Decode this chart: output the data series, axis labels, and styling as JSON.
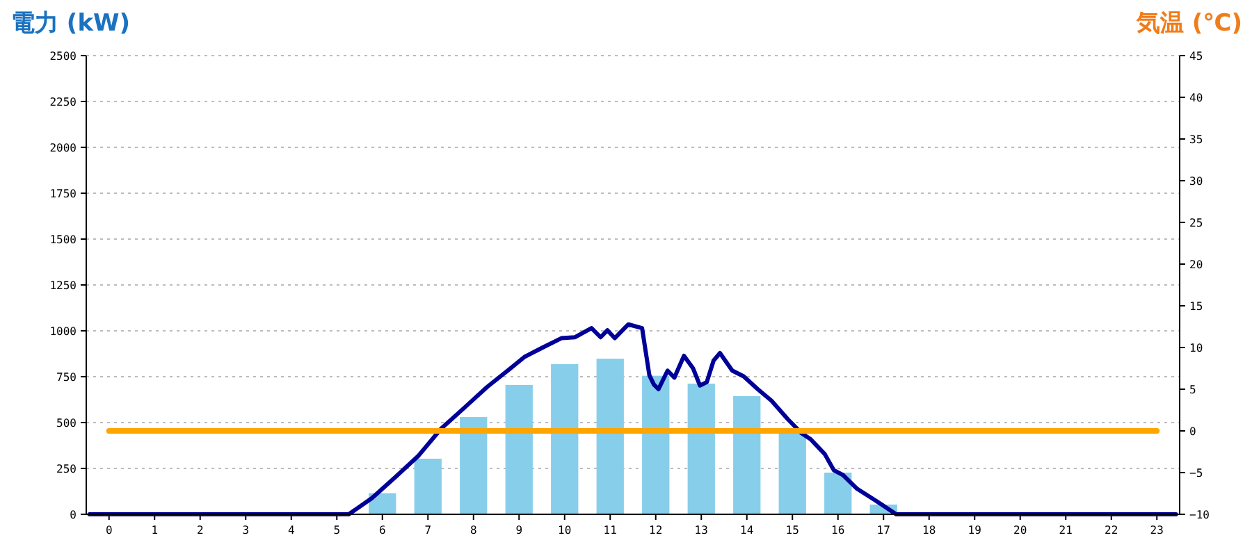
{
  "chart_data": {
    "type": "bar",
    "ylabel": "電力 (kW)",
    "y2label": "気温 (℃)",
    "x": [
      0,
      1,
      2,
      3,
      4,
      5,
      6,
      7,
      8,
      9,
      10,
      11,
      12,
      13,
      14,
      15,
      16,
      17,
      18,
      19,
      20,
      21,
      22,
      23
    ],
    "xlim": [
      -0.5,
      23.5
    ],
    "xticks": [
      0,
      1,
      2,
      3,
      4,
      5,
      6,
      7,
      8,
      9,
      10,
      11,
      12,
      13,
      14,
      15,
      16,
      17,
      18,
      19,
      20,
      21,
      22,
      23
    ],
    "ylim": [
      0,
      2500
    ],
    "yticks": [
      0,
      250,
      500,
      750,
      1000,
      1250,
      1500,
      1750,
      2000,
      2250,
      2500
    ],
    "y2lim": [
      -10,
      45
    ],
    "y2ticks": [
      -10,
      -5,
      0,
      5,
      10,
      15,
      20,
      25,
      30,
      35,
      40,
      45
    ],
    "grid": "y",
    "series": [
      {
        "color": "#87ceeb",
        "values": [
          0,
          0,
          0,
          0,
          0,
          0,
          115,
          303,
          530,
          705,
          818,
          848,
          755,
          712,
          644,
          440,
          227,
          53,
          0,
          0,
          0,
          0,
          0,
          0
        ]
      },
      {
        "type": "line",
        "color": "#000099",
        "line_style": "solid",
        "marker": "none",
        "x": [
          -0.43,
          5.26,
          5.77,
          6.28,
          6.78,
          7.29,
          7.8,
          8.3,
          8.81,
          9.12,
          9.52,
          9.93,
          10.23,
          10.59,
          10.79,
          10.94,
          11.1,
          11.35,
          11.4,
          11.7,
          11.86,
          11.96,
          12.06,
          12.26,
          12.41,
          12.62,
          12.82,
          12.97,
          13.12,
          13.27,
          13.41,
          13.68,
          13.93,
          14.24,
          14.54,
          14.9,
          15.2,
          15.4,
          15.71,
          15.91,
          16.11,
          16.42,
          16.82,
          17.28,
          23.42
        ],
        "values": [
          0,
          0,
          88,
          202,
          316,
          467,
          581,
          694,
          795,
          858,
          909,
          960,
          965,
          1015,
          965,
          1003,
          960,
          1023,
          1035,
          1015,
          758,
          707,
          682,
          783,
          745,
          864,
          795,
          702,
          720,
          838,
          879,
          783,
          752,
          682,
          619,
          518,
          442,
          409,
          328,
          240,
          214,
          139,
          76,
          0,
          0
        ]
      },
      {
        "type": "line",
        "axis": "y2",
        "color": "#ffa500",
        "line_style": "solid",
        "marker": "none",
        "values": [
          0,
          0,
          0,
          0,
          0,
          0,
          0,
          0,
          0,
          0,
          0,
          0,
          0,
          0,
          0,
          0,
          0,
          0,
          0,
          0,
          0,
          0,
          0,
          0
        ]
      }
    ]
  }
}
